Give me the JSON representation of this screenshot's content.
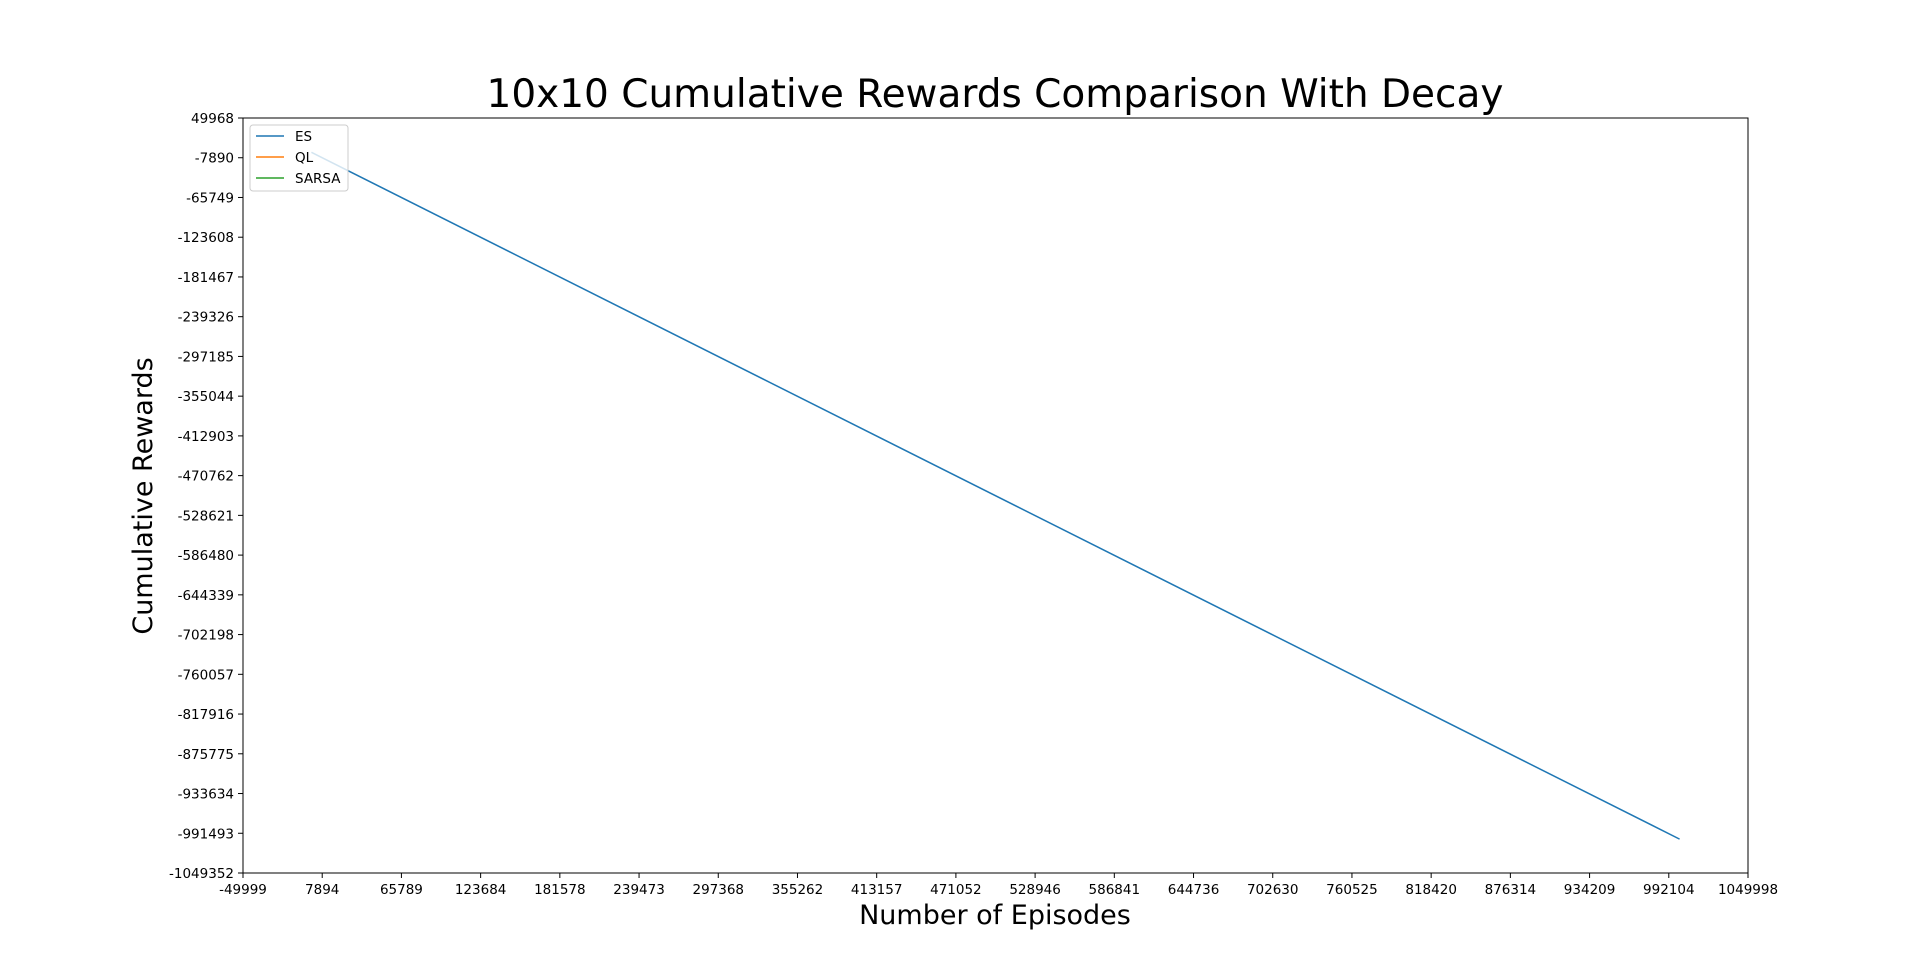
{
  "chart_data": {
    "type": "line",
    "title": "10x10 Cumulative Rewards Comparison With Decay",
    "xlabel": "Number of Episodes",
    "ylabel": "Cumulative Rewards",
    "xlim": [
      -49999,
      1049998
    ],
    "ylim": [
      -1049352,
      49968
    ],
    "xticks": [
      "-49999",
      "7894",
      "65789",
      "123684",
      "181578",
      "239473",
      "297368",
      "355262",
      "413157",
      "471052",
      "528946",
      "586841",
      "644736",
      "702630",
      "760525",
      "818420",
      "876314",
      "934209",
      "992104",
      "1049998"
    ],
    "yticks": [
      "49968",
      "-7890",
      "-65749",
      "-123608",
      "-181467",
      "-239326",
      "-297185",
      "-355044",
      "-412903",
      "-470762",
      "-528621",
      "-586480",
      "-644339",
      "-702198",
      "-760057",
      "-817916",
      "-875775",
      "-933634",
      "-991493",
      "-1049352"
    ],
    "grid": false,
    "legend_position": "top-left",
    "series": [
      {
        "name": "ES",
        "color": "#1f77b4",
        "x": [
          0,
          1000000
        ],
        "y": [
          0,
          -1000000
        ]
      },
      {
        "name": "QL",
        "color": "#ff7f0e",
        "x": [],
        "y": []
      },
      {
        "name": "SARSA",
        "color": "#2ca02c",
        "x": [],
        "y": []
      }
    ]
  }
}
